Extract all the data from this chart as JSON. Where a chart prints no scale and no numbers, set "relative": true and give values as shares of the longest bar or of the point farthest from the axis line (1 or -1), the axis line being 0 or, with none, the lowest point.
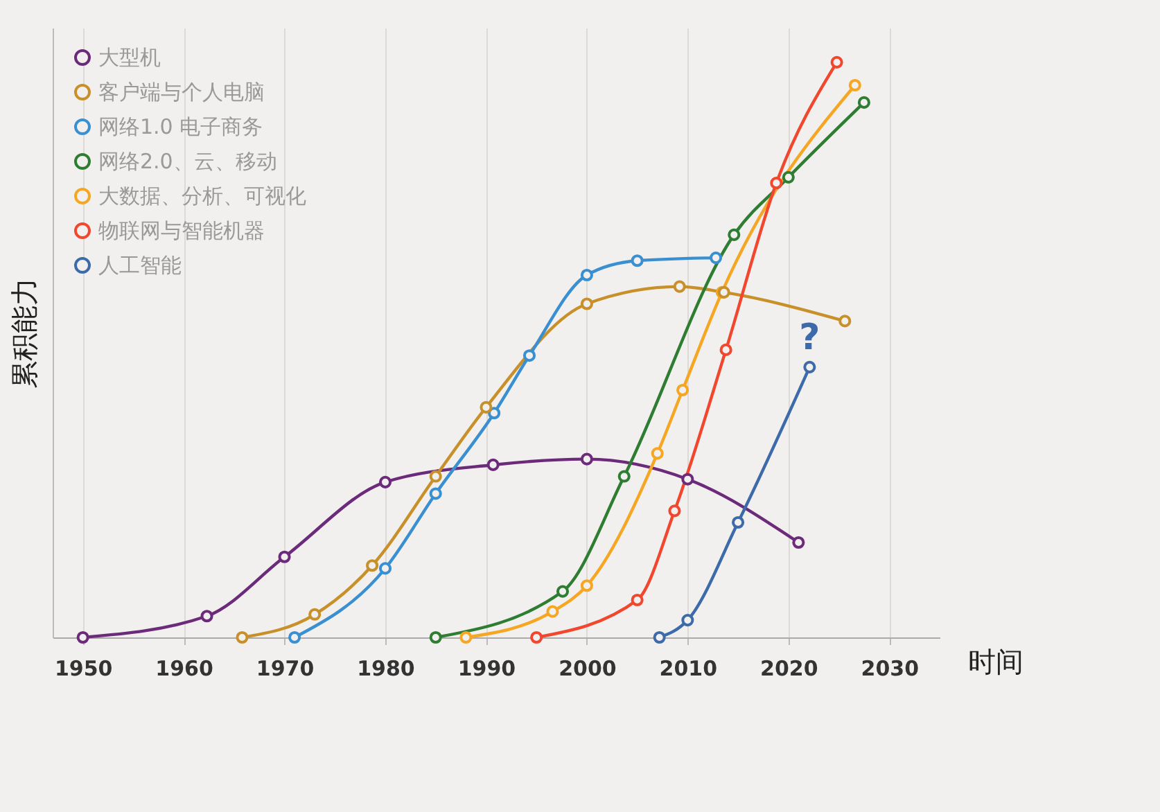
{
  "chart_data": {
    "type": "line",
    "relative": true,
    "xlabel": "时间",
    "ylabel": "累积能力",
    "xlim": [
      1947,
      2035
    ],
    "xticks": [
      1950,
      1960,
      1970,
      1980,
      1990,
      2000,
      2010,
      2020,
      2030
    ],
    "grid": "x",
    "legend": "top left",
    "marker": "circle",
    "line_style": "solid",
    "annotations": [
      "?"
    ],
    "series": [
      {
        "name": "大型机",
        "color": "#6b2a7a",
        "x": [
          1950,
          1962.3,
          1970,
          1980,
          1990.7,
          2000,
          2010,
          2021
        ],
        "values": [
          0,
          0.037,
          0.14,
          0.27,
          0.3,
          0.31,
          0.275,
          0.165
        ]
      },
      {
        "name": "客户端与个人电脑",
        "color": "#c8902a",
        "x": [
          1965.8,
          1973,
          1978.7,
          1985,
          1990,
          2000,
          2009.2,
          2013.6,
          2025.6
        ],
        "values": [
          0,
          0.04,
          0.125,
          0.28,
          0.4,
          0.58,
          0.61,
          0.6,
          0.55
        ]
      },
      {
        "name": "网络1.0 电子商务",
        "color": "#3a8fd0",
        "x": [
          1971,
          1980,
          1985,
          1990.8,
          1994.3,
          2000,
          2005,
          2012.8
        ],
        "values": [
          0,
          0.12,
          0.25,
          0.39,
          0.49,
          0.63,
          0.655,
          0.66
        ]
      },
      {
        "name": "网络2.0、云、移动",
        "color": "#2e7d32",
        "x": [
          1985,
          1997.6,
          2003.7,
          2014.6,
          2020,
          2027.5
        ],
        "values": [
          0,
          0.08,
          0.28,
          0.7,
          0.8,
          0.93
        ]
      },
      {
        "name": "大数据、分析、可视化",
        "color": "#f5a623",
        "x": [
          1988,
          1996.6,
          2000,
          2007,
          2009.5,
          2013.4,
          2026.6
        ],
        "values": [
          0,
          0.045,
          0.09,
          0.32,
          0.43,
          0.6,
          0.96
        ]
      },
      {
        "name": "物联网与智能机器",
        "color": "#f0472e",
        "x": [
          1995,
          2005,
          2008.7,
          2013.8,
          2018.8,
          2024.8
        ],
        "values": [
          0,
          0.065,
          0.22,
          0.5,
          0.79,
          1
        ]
      },
      {
        "name": "人工智能",
        "color": "#3d6aa8",
        "x": [
          2007.2,
          2010,
          2015,
          2022.1
        ],
        "values": [
          0,
          0.03,
          0.2,
          0.47
        ]
      }
    ]
  }
}
